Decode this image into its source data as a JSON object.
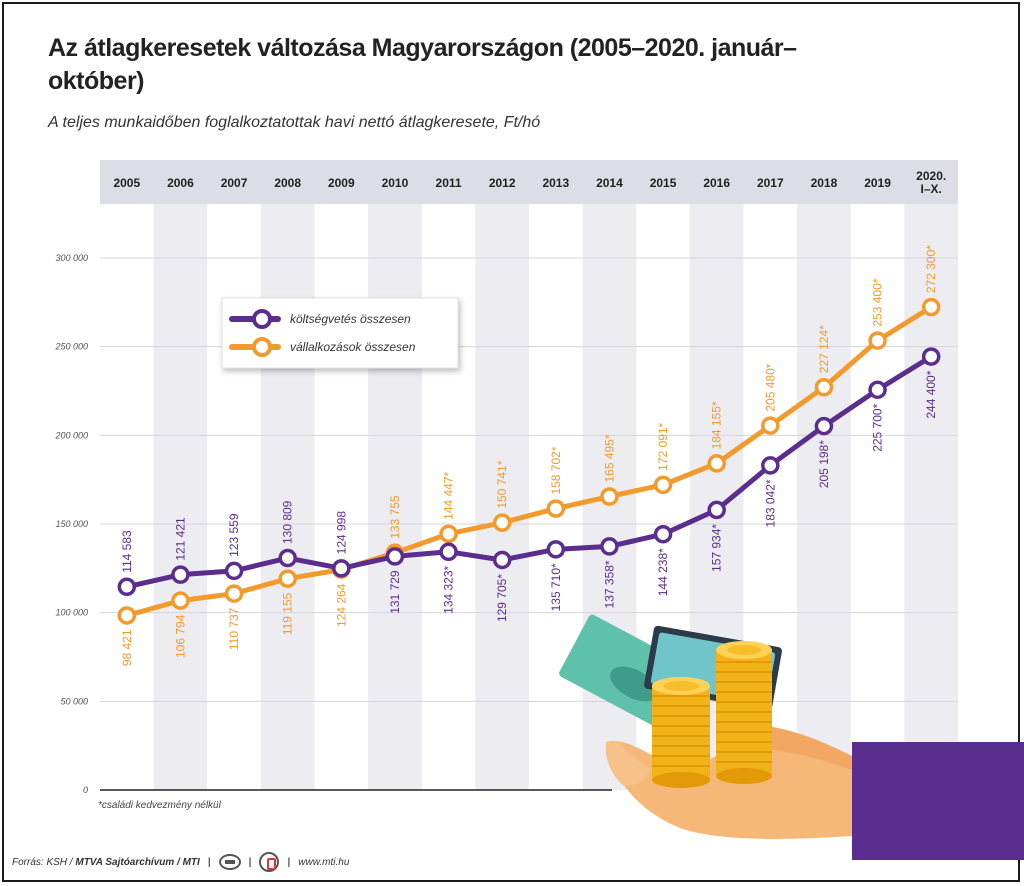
{
  "header": {
    "title": "Az átlagkeresetek változása Magyarországon (2005–2020. január–október)",
    "subtitle": "A teljes munkaidőben foglalkoztatottak havi nettó átlagkeresete, Ft/hó"
  },
  "footnote": "*családi kedvezmény nélkül",
  "footer": {
    "source": "Forrás: KSH / ",
    "agency": "MTVA Sajtóarchívum / MTI",
    "url": "www.mti.hu"
  },
  "colors": {
    "purple": "#5b2d8e",
    "orange": "#f39a2c",
    "band": "#ececf1",
    "header": "#dcdde6"
  },
  "chart_data": {
    "type": "line",
    "x": [
      "2005",
      "2006",
      "2007",
      "2008",
      "2009",
      "2010",
      "2011",
      "2012",
      "2013",
      "2014",
      "2015",
      "2016",
      "2017",
      "2018",
      "2019",
      "2020. I–X."
    ],
    "ylim": [
      0,
      300000
    ],
    "yticks": [
      0,
      50000,
      100000,
      150000,
      200000,
      250000,
      300000
    ],
    "ytick_labels": [
      "0",
      "50 000",
      "100 000",
      "150 000",
      "200 000",
      "250 000",
      "300 000"
    ],
    "legend_position": "top-left",
    "series": [
      {
        "name": "költségvetés összesen",
        "color": "#5b2d8e",
        "values": [
          114583,
          121421,
          123559,
          130809,
          124998,
          131729,
          134323,
          129705,
          135710,
          137358,
          144238,
          157934,
          183042,
          205198,
          225700,
          244400
        ],
        "labels": [
          "114 583",
          "121 421",
          "123 559",
          "130 809",
          "124 998",
          "131 729",
          "134 323*",
          "129 705*",
          "135 710*",
          "137 358*",
          "144 238*",
          "157 934*",
          "183 042*",
          "205 198*",
          "225 700*",
          "244 400*"
        ]
      },
      {
        "name": "vállalkozások összesen",
        "color": "#f39a2c",
        "values": [
          98421,
          106794,
          110737,
          119155,
          124264,
          133755,
          144447,
          150741,
          158702,
          165495,
          172091,
          184155,
          205480,
          227124,
          253400,
          272300
        ],
        "labels": [
          "98 421",
          "106 794",
          "110 737",
          "119 155",
          "124 264",
          "133 755",
          "144 447*",
          "150 741*",
          "158 702*",
          "165 495*",
          "172 091*",
          "184 155*",
          "205 480*",
          "227 124*",
          "253 400*",
          "272 300*"
        ]
      }
    ]
  }
}
